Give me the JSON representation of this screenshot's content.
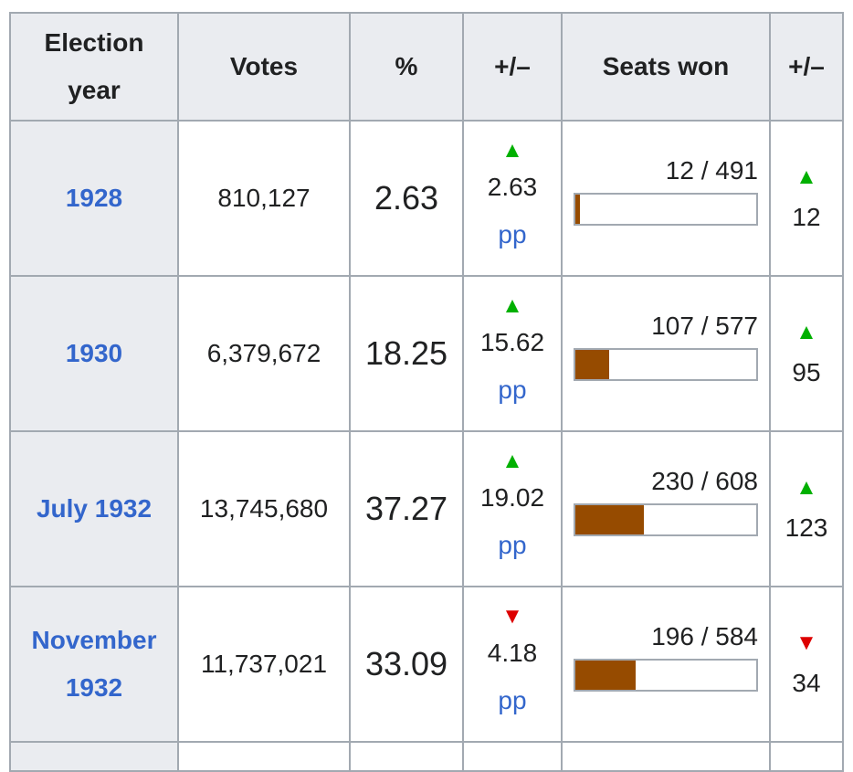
{
  "headers": {
    "year": [
      "Election",
      "year"
    ],
    "votes": "Votes",
    "pct": "%",
    "pct_change": "+/–",
    "seats": "Seats won",
    "seat_change": "+/–"
  },
  "rows": [
    {
      "year": [
        "1928"
      ],
      "votes": "810,127",
      "pct": "2.63",
      "direction": "up",
      "pct_change": "2.63",
      "unit": "pp",
      "seats": "12 / 491",
      "seat_fraction": 0.0244,
      "seat_change": "12"
    },
    {
      "year": [
        "1930"
      ],
      "votes": "6,379,672",
      "pct": "18.25",
      "direction": "up",
      "pct_change": "15.62",
      "unit": "pp",
      "seats": "107 / 577",
      "seat_fraction": 0.1854,
      "seat_change": "95"
    },
    {
      "year": [
        "July 1932"
      ],
      "votes": "13,745,680",
      "pct": "37.27",
      "direction": "up",
      "pct_change": "19.02",
      "unit": "pp",
      "seats": "230 / 608",
      "seat_fraction": 0.3783,
      "seat_change": "123"
    },
    {
      "year": [
        "November",
        "1932"
      ],
      "votes": "11,737,021",
      "pct": "33.09",
      "direction": "down",
      "pct_change": "4.18",
      "unit": "pp",
      "seats": "196 / 584",
      "seat_fraction": 0.3356,
      "seat_change": "34"
    }
  ],
  "colors": {
    "up": "#00b000",
    "down": "#dd0000",
    "bar": "#964b00",
    "link": "#3366cc"
  }
}
